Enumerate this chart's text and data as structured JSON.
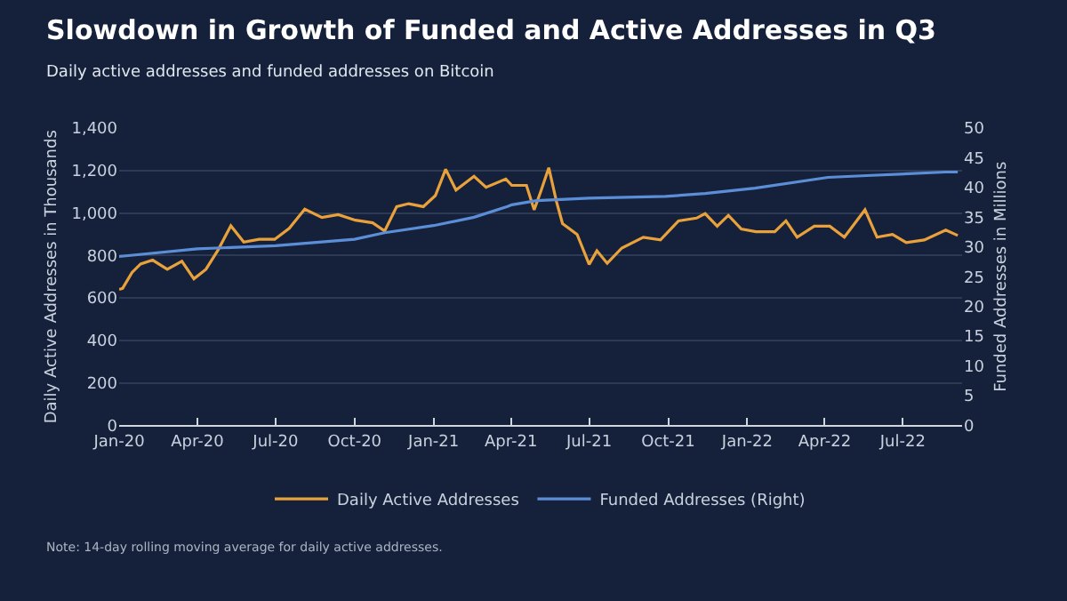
{
  "chart_data": {
    "type": "line",
    "title": "Slowdown in Growth of Funded and Active Addresses in Q3",
    "subtitle": "Daily active addresses and funded addresses on Bitcoin",
    "ylabel": "Daily Active Addresses in Thousands",
    "y2label": "Funded Addresses in Millions",
    "annotations": [
      "Note: 14-day rolling moving average for daily active addresses."
    ],
    "xlim": [
      "2020-01-01",
      "2022-09-08"
    ],
    "xticks": [
      {
        "value": "2020-01-01",
        "label": "Jan-20"
      },
      {
        "value": "2020-04-01",
        "label": "Apr-20"
      },
      {
        "value": "2020-07-01",
        "label": "Jul-20"
      },
      {
        "value": "2020-10-01",
        "label": "Oct-20"
      },
      {
        "value": "2021-01-01",
        "label": "Jan-21"
      },
      {
        "value": "2021-04-01",
        "label": "Apr-21"
      },
      {
        "value": "2021-07-01",
        "label": "Jul-21"
      },
      {
        "value": "2021-10-01",
        "label": "Oct-21"
      },
      {
        "value": "2022-01-01",
        "label": "Jan-22"
      },
      {
        "value": "2022-04-01",
        "label": "Apr-22"
      },
      {
        "value": "2022-07-01",
        "label": "Jul-22"
      }
    ],
    "ylim": [
      0,
      1400
    ],
    "yticks": [
      {
        "value": 0,
        "label": "0"
      },
      {
        "value": 200,
        "label": "200"
      },
      {
        "value": 400,
        "label": "400"
      },
      {
        "value": 600,
        "label": "600"
      },
      {
        "value": 800,
        "label": "800"
      },
      {
        "value": 1000,
        "label": "1,000"
      },
      {
        "value": 1200,
        "label": "1,200"
      },
      {
        "value": 1400,
        "label": "1,400"
      }
    ],
    "y2lim": [
      0,
      50
    ],
    "y2ticks": [
      0,
      5,
      10,
      15,
      20,
      25,
      30,
      35,
      40,
      45,
      50
    ],
    "grid": "y",
    "legend": "bottom",
    "marker": "none",
    "line_style": "solid",
    "series": [
      {
        "name": "Daily Active Addresses",
        "color": "#e9a23b",
        "x": [
          "2020-01-01",
          "2020-01-05",
          "2020-01-16",
          "2020-01-26",
          "2020-02-09",
          "2020-02-26",
          "2020-03-14",
          "2020-03-28",
          "2020-04-11",
          "2020-04-25",
          "2020-05-10",
          "2020-05-25",
          "2020-06-12",
          "2020-06-30",
          "2020-07-17",
          "2020-08-04",
          "2020-08-24",
          "2020-09-12",
          "2020-10-02",
          "2020-10-22",
          "2020-11-05",
          "2020-11-19",
          "2020-12-03",
          "2020-12-20",
          "2021-01-03",
          "2021-01-15",
          "2021-01-27",
          "2021-02-17",
          "2021-03-03",
          "2021-03-26",
          "2021-04-02",
          "2021-04-19",
          "2021-04-28",
          "2021-05-06",
          "2021-05-15",
          "2021-05-24",
          "2021-05-31",
          "2021-06-17",
          "2021-07-01",
          "2021-07-10",
          "2021-07-22",
          "2021-08-08",
          "2021-09-02",
          "2021-09-22",
          "2021-10-13",
          "2021-11-03",
          "2021-11-13",
          "2021-11-27",
          "2021-12-10",
          "2021-12-25",
          "2022-01-11",
          "2022-02-02",
          "2022-02-15",
          "2022-02-28",
          "2022-03-20",
          "2022-04-07",
          "2022-04-24",
          "2022-05-18",
          "2022-06-01",
          "2022-06-19",
          "2022-07-05",
          "2022-07-26",
          "2022-08-20",
          "2022-09-03"
        ],
        "values": [
          640,
          645,
          720,
          760,
          778,
          735,
          773,
          690,
          735,
          825,
          940,
          863,
          876,
          876,
          928,
          1018,
          979,
          992,
          966,
          954,
          915,
          1030,
          1044,
          1030,
          1082,
          1206,
          1108,
          1173,
          1121,
          1160,
          1130,
          1130,
          1015,
          1105,
          1213,
          1053,
          950,
          899,
          758,
          822,
          763,
          835,
          886,
          873,
          963,
          976,
          997,
          938,
          989,
          925,
          912,
          912,
          963,
          886,
          938,
          938,
          886,
          1015,
          886,
          899,
          861,
          873,
          920,
          894
        ]
      },
      {
        "name": "Funded Addresses (Right)",
        "color": "#5b8ed6",
        "axis": "y2",
        "x": [
          "2020-01-01",
          "2020-04-01",
          "2020-07-01",
          "2020-10-01",
          "2020-11-05",
          "2021-01-01",
          "2021-02-17",
          "2021-03-28",
          "2021-04-02",
          "2021-05-01",
          "2021-07-01",
          "2021-09-28",
          "2021-11-13",
          "2022-01-10",
          "2022-04-05",
          "2022-05-20",
          "2022-08-20",
          "2022-09-03"
        ],
        "values": [
          28.4,
          29.7,
          30.2,
          31.3,
          32.4,
          33.6,
          35.0,
          36.8,
          37.1,
          37.8,
          38.2,
          38.5,
          39.0,
          39.9,
          41.7,
          42.0,
          42.6,
          42.6
        ]
      }
    ]
  }
}
